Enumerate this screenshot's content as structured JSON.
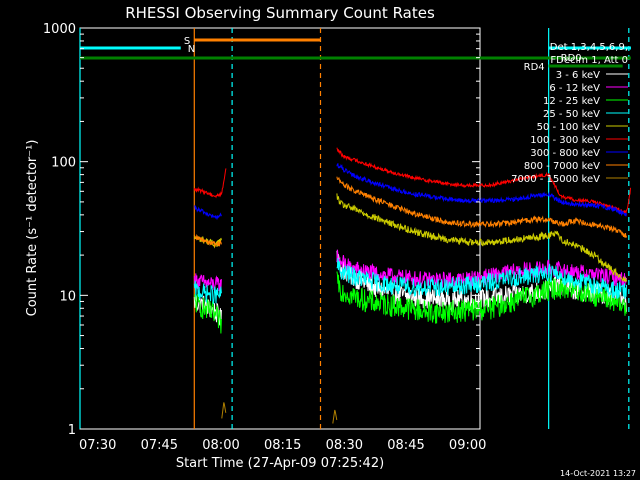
{
  "chart_data": {
    "type": "line",
    "title": "RHESSI Observing Summary Count Rates",
    "xlabel": "Start Time (27-Apr-09 07:25:42)",
    "ylabel": "Count Rate (s⁻¹ detector⁻¹)",
    "yscale": "log",
    "ylim": [
      1,
      1000
    ],
    "yticks": [
      "1",
      "10",
      "100",
      "1000"
    ],
    "xlim": [
      "07:25:42",
      "09:03:00"
    ],
    "xticks": [
      "07:30",
      "07:45",
      "08:00",
      "08:15",
      "08:30",
      "08:45",
      "09:00"
    ],
    "timestamp": "14-Oct-2021 13:27",
    "legend": {
      "position": "right",
      "header": [
        "Det 1,3,4,5,6,9,",
        "FDecim 1, Att 0"
      ]
    },
    "series": [
      {
        "name": "3 - 6 keV",
        "color": "#ffffff",
        "seg1": [
          [
            27.8,
            9
          ],
          [
            30,
            8.5
          ],
          [
            33,
            7.5
          ],
          [
            34.5,
            6.5
          ]
        ],
        "seg2": [
          [
            62.5,
            22
          ],
          [
            63.5,
            16
          ],
          [
            66,
            14
          ],
          [
            70,
            12
          ],
          [
            75,
            10.5
          ],
          [
            80,
            9.8
          ],
          [
            85,
            9.5
          ],
          [
            90,
            9.2
          ],
          [
            95,
            9.2
          ],
          [
            100,
            9.5
          ],
          [
            105,
            10
          ],
          [
            110,
            10.5
          ],
          [
            114,
            11
          ],
          [
            117,
            12
          ],
          [
            120,
            11
          ],
          [
            125,
            10.5
          ],
          [
            130,
            10
          ],
          [
            133,
            9
          ]
        ]
      },
      {
        "name": "6 - 12 keV",
        "color": "#ff00ff",
        "seg1": [
          [
            27.8,
            13
          ],
          [
            30,
            12.5
          ],
          [
            33,
            12
          ],
          [
            34.5,
            12
          ]
        ],
        "seg2": [
          [
            62.5,
            20
          ],
          [
            63.5,
            18
          ],
          [
            66,
            16
          ],
          [
            70,
            15
          ],
          [
            75,
            14
          ],
          [
            80,
            13.5
          ],
          [
            85,
            13
          ],
          [
            90,
            13
          ],
          [
            95,
            13.3
          ],
          [
            100,
            14
          ],
          [
            105,
            15
          ],
          [
            110,
            15.5
          ],
          [
            114,
            16
          ],
          [
            117,
            15.5
          ],
          [
            120,
            15
          ],
          [
            125,
            14.5
          ],
          [
            130,
            13.5
          ],
          [
            133,
            13
          ]
        ]
      },
      {
        "name": "12 - 25 keV",
        "color": "#00ff00",
        "seg1": [
          [
            27.8,
            9
          ],
          [
            30,
            8
          ],
          [
            33,
            7
          ],
          [
            34.5,
            6
          ]
        ],
        "seg2": [
          [
            62.5,
            14
          ],
          [
            63.5,
            11
          ],
          [
            66,
            10
          ],
          [
            70,
            9
          ],
          [
            75,
            8.5
          ],
          [
            80,
            8
          ],
          [
            85,
            7.5
          ],
          [
            90,
            7.5
          ],
          [
            95,
            7.8
          ],
          [
            100,
            8
          ],
          [
            105,
            9
          ],
          [
            110,
            10
          ],
          [
            114,
            11
          ],
          [
            117,
            11.5
          ],
          [
            120,
            11
          ],
          [
            125,
            10
          ],
          [
            130,
            9
          ],
          [
            133,
            8
          ]
        ]
      },
      {
        "name": "25 - 50 keV",
        "color": "#00ffff",
        "seg1": [
          [
            27.8,
            11
          ],
          [
            30,
            10.5
          ],
          [
            33,
            10
          ],
          [
            34.5,
            10
          ]
        ],
        "seg2": [
          [
            62.5,
            17
          ],
          [
            63.5,
            15
          ],
          [
            66,
            14
          ],
          [
            70,
            13
          ],
          [
            75,
            12
          ],
          [
            80,
            11.5
          ],
          [
            85,
            11.5
          ],
          [
            90,
            11.5
          ],
          [
            95,
            12
          ],
          [
            100,
            12.5
          ],
          [
            105,
            13.5
          ],
          [
            110,
            14
          ],
          [
            114,
            15
          ],
          [
            117,
            14
          ],
          [
            120,
            13
          ],
          [
            125,
            12
          ],
          [
            130,
            11
          ],
          [
            133,
            10.5
          ]
        ]
      },
      {
        "name": "50 - 100 keV",
        "color": "#cccc00",
        "seg1": [
          [
            27.8,
            27
          ],
          [
            30,
            26
          ],
          [
            33,
            24
          ],
          [
            34.5,
            26
          ]
        ],
        "seg2": [
          [
            62.5,
            55
          ],
          [
            63.5,
            48
          ],
          [
            66,
            45
          ],
          [
            70,
            40
          ],
          [
            75,
            35
          ],
          [
            80,
            31
          ],
          [
            85,
            28
          ],
          [
            90,
            26
          ],
          [
            95,
            25
          ],
          [
            100,
            25
          ],
          [
            105,
            26
          ],
          [
            110,
            27
          ],
          [
            114,
            28
          ],
          [
            116,
            30
          ],
          [
            117,
            26
          ],
          [
            120,
            24
          ],
          [
            125,
            20
          ],
          [
            130,
            15
          ],
          [
            133,
            13
          ]
        ]
      },
      {
        "name": "100 - 300 keV",
        "color": "#ff0000",
        "seg1": [
          [
            27.8,
            62
          ],
          [
            30,
            60
          ],
          [
            33,
            55
          ],
          [
            34.5,
            58
          ],
          [
            35.5,
            90
          ]
        ],
        "seg2": [
          [
            62.5,
            125
          ],
          [
            64,
            110
          ],
          [
            66,
            105
          ],
          [
            70,
            95
          ],
          [
            75,
            85
          ],
          [
            80,
            77
          ],
          [
            85,
            72
          ],
          [
            90,
            68
          ],
          [
            95,
            66
          ],
          [
            100,
            67
          ],
          [
            105,
            72
          ],
          [
            110,
            77
          ],
          [
            114,
            80
          ],
          [
            117,
            55
          ],
          [
            120,
            52
          ],
          [
            125,
            50
          ],
          [
            130,
            45
          ],
          [
            133,
            42
          ],
          [
            134,
            65
          ]
        ]
      },
      {
        "name": "300 - 800 keV",
        "color": "#0000ff",
        "seg1": [
          [
            27.8,
            45
          ],
          [
            30,
            42
          ],
          [
            33,
            38
          ],
          [
            34.5,
            40
          ]
        ],
        "seg2": [
          [
            62.5,
            95
          ],
          [
            64,
            88
          ],
          [
            66,
            80
          ],
          [
            70,
            72
          ],
          [
            75,
            64
          ],
          [
            80,
            58
          ],
          [
            85,
            55
          ],
          [
            90,
            52
          ],
          [
            95,
            51
          ],
          [
            100,
            51
          ],
          [
            105,
            52
          ],
          [
            110,
            55
          ],
          [
            114,
            57
          ],
          [
            117,
            50
          ],
          [
            120,
            48
          ],
          [
            125,
            47
          ],
          [
            130,
            44
          ],
          [
            133,
            40
          ]
        ]
      },
      {
        "name": "800 - 7000 keV",
        "color": "#ff8000",
        "seg1": [
          [
            27.8,
            27
          ],
          [
            30,
            26
          ],
          [
            33,
            24
          ],
          [
            34.5,
            25
          ]
        ],
        "seg2": [
          [
            62.5,
            75
          ],
          [
            64,
            68
          ],
          [
            66,
            62
          ],
          [
            70,
            55
          ],
          [
            75,
            48
          ],
          [
            80,
            42
          ],
          [
            85,
            38
          ],
          [
            90,
            35
          ],
          [
            95,
            34
          ],
          [
            100,
            34
          ],
          [
            105,
            35
          ],
          [
            110,
            37
          ],
          [
            114,
            37
          ],
          [
            117,
            34
          ],
          [
            120,
            36
          ],
          [
            125,
            34
          ],
          [
            130,
            31
          ],
          [
            133,
            28
          ]
        ]
      },
      {
        "name": "7000 - 15000 keV",
        "color": "#b08000",
        "seg1": [
          [
            34.5,
            1.2
          ],
          [
            35,
            1.6
          ],
          [
            35.5,
            1.3
          ]
        ],
        "seg2": [
          [
            61.5,
            1.1
          ],
          [
            62,
            1.4
          ],
          [
            62.5,
            1.15
          ]
        ]
      }
    ],
    "flags": [
      {
        "label": "S",
        "color": "#ff8000",
        "x": [
          27.8,
          58.5
        ],
        "row": 0
      },
      {
        "label": "N",
        "color": "#00ffff",
        "x": [
          0,
          24.5
        ],
        "row": 1
      },
      {
        "label": "",
        "color": "#00ffff",
        "x": [
          114,
          134
        ],
        "row": 1
      },
      {
        "label": "",
        "color": "#008000",
        "x": [
          0,
          134
        ],
        "row": 2
      },
      {
        "label": "RD0",
        "color": "#00ffff",
        "x": [
          114,
          134
        ],
        "row": 3
      },
      {
        "label": "RD4",
        "color": "#008000",
        "x": [
          114,
          132
        ],
        "row": 4
      }
    ],
    "vlines": [
      {
        "x": 0,
        "color": "#00ffff",
        "style": "solid"
      },
      {
        "x": 27.8,
        "color": "#ff8000",
        "style": "solid"
      },
      {
        "x": 37,
        "color": "#00ffff",
        "style": "dashed"
      },
      {
        "x": 58.5,
        "color": "#ff8000",
        "style": "dashed"
      },
      {
        "x": 114,
        "color": "#00ffff",
        "style": "solid"
      },
      {
        "x": 133.5,
        "color": "#00ffff",
        "style": "dashed"
      }
    ]
  }
}
